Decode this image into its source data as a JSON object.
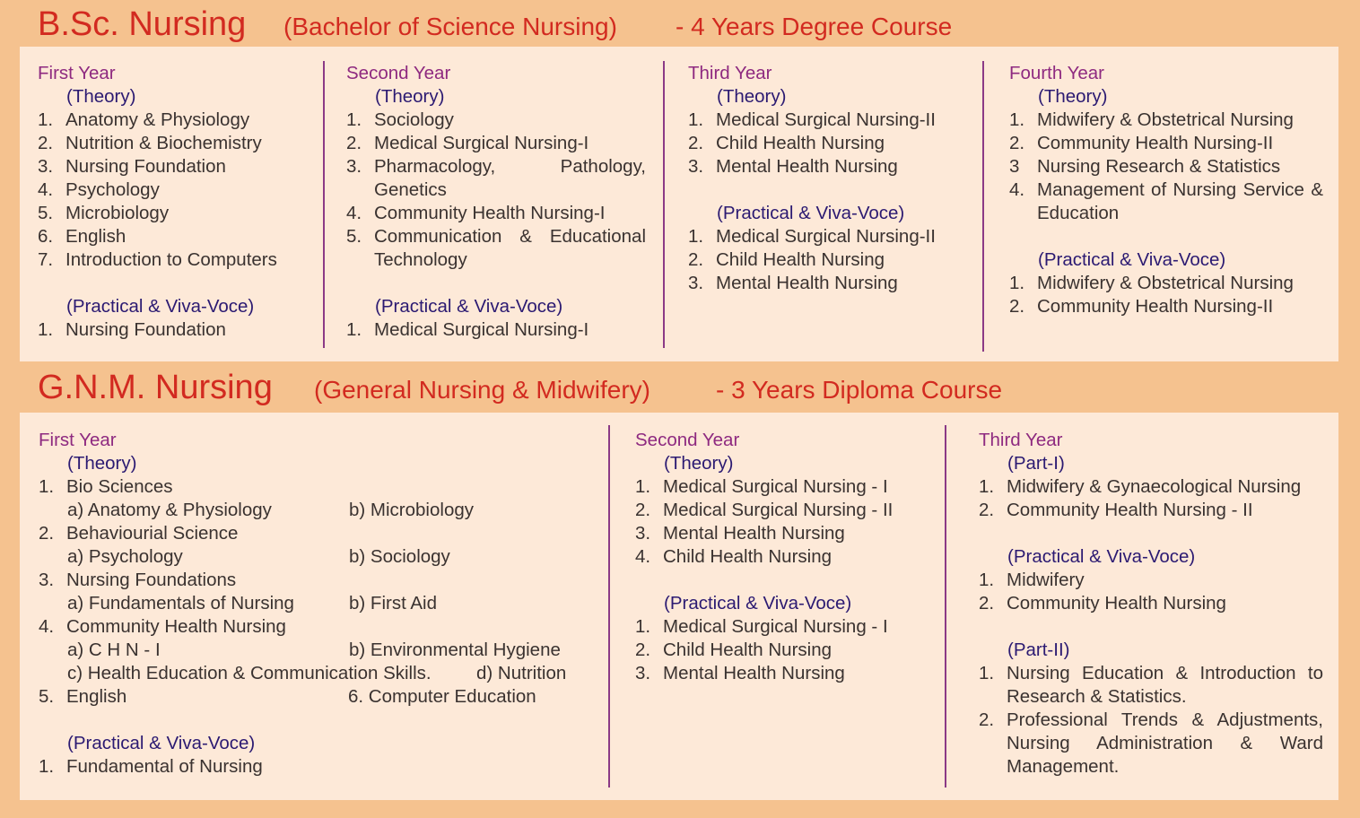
{
  "colors": {
    "background": "#f5c28f",
    "panel": "#fde9d8",
    "title": "#d22a20",
    "year": "#8e2a80",
    "heading": "#2b1a72",
    "divider": "#8b3a86"
  },
  "bsc": {
    "title": "B.Sc. Nursing",
    "subtitle": "(Bachelor of Science Nursing)",
    "note": "- 4 Years Degree Course",
    "columns": [
      {
        "year": "First Year",
        "blocks": [
          {
            "heading": "(Theory)",
            "items": [
              {
                "num": "1.",
                "text": "Anatomy & Physiology"
              },
              {
                "num": "2.",
                "text": "Nutrition & Biochemistry"
              },
              {
                "num": "3.",
                "text": "Nursing Foundation"
              },
              {
                "num": "4.",
                "text": "Psychology"
              },
              {
                "num": "5.",
                "text": "Microbiology"
              },
              {
                "num": "6.",
                "text": "English"
              },
              {
                "num": "7.",
                "text": "Introduction to Computers"
              }
            ]
          },
          {
            "heading": "(Practical & Viva-Voce)",
            "items": [
              {
                "num": "1.",
                "text": "Nursing Foundation"
              }
            ]
          }
        ]
      },
      {
        "year": "Second Year",
        "blocks": [
          {
            "heading": "(Theory)",
            "items": [
              {
                "num": "1.",
                "text": "Sociology"
              },
              {
                "num": "2.",
                "text": "Medical Surgical Nursing-I"
              },
              {
                "num": "3.",
                "text": "Pharmacology, Pathology, Genetics"
              },
              {
                "num": "4.",
                "text": "Community Health Nursing-I"
              },
              {
                "num": "5.",
                "text": "Communication & Educational Technology"
              }
            ]
          },
          {
            "heading": "(Practical & Viva-Voce)",
            "items": [
              {
                "num": "1.",
                "text": "Medical Surgical Nursing-I"
              }
            ]
          }
        ]
      },
      {
        "year": "Third Year",
        "blocks": [
          {
            "heading": "(Theory)",
            "items": [
              {
                "num": "1.",
                "text": "Medical Surgical Nursing-II"
              },
              {
                "num": "2.",
                "text": "Child Health Nursing"
              },
              {
                "num": "3.",
                "text": "Mental Health Nursing"
              }
            ]
          },
          {
            "heading": "(Practical & Viva-Voce)",
            "items": [
              {
                "num": "1.",
                "text": "Medical Surgical Nursing-II"
              },
              {
                "num": "2.",
                "text": "Child Health Nursing"
              },
              {
                "num": "3.",
                "text": "Mental Health Nursing"
              }
            ]
          }
        ]
      },
      {
        "year": "Fourth Year",
        "blocks": [
          {
            "heading": "(Theory)",
            "items": [
              {
                "num": "1.",
                "text": "Midwifery & Obstetrical Nursing"
              },
              {
                "num": "2.",
                "text": "Community Health Nursing-II"
              },
              {
                "num": "3",
                "text": "Nursing Research & Statistics"
              },
              {
                "num": "4.",
                "text": "Management of Nursing Service & Education"
              }
            ]
          },
          {
            "heading": "(Practical & Viva-Voce)",
            "items": [
              {
                "num": "1.",
                "text": "Midwifery & Obstetrical Nursing"
              },
              {
                "num": "2.",
                "text": "Community Health Nursing-II"
              }
            ]
          }
        ]
      }
    ]
  },
  "gnm": {
    "title": "G.N.M. Nursing",
    "subtitle": "(General Nursing & Midwifery)",
    "note": "- 3 Years Diploma Course",
    "columns": [
      {
        "year": "First Year",
        "blocks": [
          {
            "heading": "(Theory)",
            "items": [
              {
                "num": "1.",
                "text": "Bio Sciences",
                "subs": [
                  [
                    "a) Anatomy & Physiology",
                    "b) Microbiology"
                  ]
                ]
              },
              {
                "num": "2.",
                "text": "Behaviourial Science",
                "subs": [
                  [
                    "a) Psychology",
                    "b) Sociology"
                  ]
                ]
              },
              {
                "num": "3.",
                "text": "Nursing Foundations",
                "subs": [
                  [
                    "a) Fundamentals of Nursing",
                    "b) First Aid"
                  ]
                ]
              },
              {
                "num": "4.",
                "text": "Community Health Nursing",
                "subs": [
                  [
                    "a) C H N - I",
                    "b) Environmental Hygiene"
                  ],
                  [
                    "c) Health Education & Communication Skills.",
                    "d) Nutrition"
                  ]
                ]
              },
              {
                "num": "5.",
                "text": "English",
                "extra": "6. Computer Education"
              }
            ]
          },
          {
            "heading": "(Practical & Viva-Voce)",
            "items": [
              {
                "num": "1.",
                "text": "Fundamental of Nursing"
              }
            ]
          }
        ]
      },
      {
        "year": "Second Year",
        "blocks": [
          {
            "heading": "(Theory)",
            "items": [
              {
                "num": "1.",
                "text": "Medical Surgical Nursing - I"
              },
              {
                "num": "2.",
                "text": "Medical Surgical Nursing - II"
              },
              {
                "num": "3.",
                "text": "Mental Health Nursing"
              },
              {
                "num": "4.",
                "text": "Child Health Nursing"
              }
            ]
          },
          {
            "heading": "(Practical & Viva-Voce)",
            "items": [
              {
                "num": "1.",
                "text": "Medical Surgical Nursing - I"
              },
              {
                "num": "2.",
                "text": "Child Health Nursing"
              },
              {
                "num": "3.",
                "text": "Mental Health Nursing"
              }
            ]
          }
        ]
      },
      {
        "year": "Third Year",
        "blocks": [
          {
            "heading": "(Part-I)",
            "items": [
              {
                "num": "1.",
                "text": "Midwifery & Gynaecological Nursing"
              },
              {
                "num": "2.",
                "text": "Community Health Nursing - II"
              }
            ]
          },
          {
            "heading": "(Practical & Viva-Voce)",
            "items": [
              {
                "num": "1.",
                "text": "Midwifery"
              },
              {
                "num": "2.",
                "text": "Community Health Nursing"
              }
            ]
          },
          {
            "heading": "(Part-II)",
            "items": [
              {
                "num": "1.",
                "text": "Nursing Education & Introduction to Research & Statistics."
              },
              {
                "num": "2.",
                "text": "Professional Trends & Adjustments, Nursing Administration & Ward Management."
              }
            ]
          }
        ]
      }
    ]
  }
}
